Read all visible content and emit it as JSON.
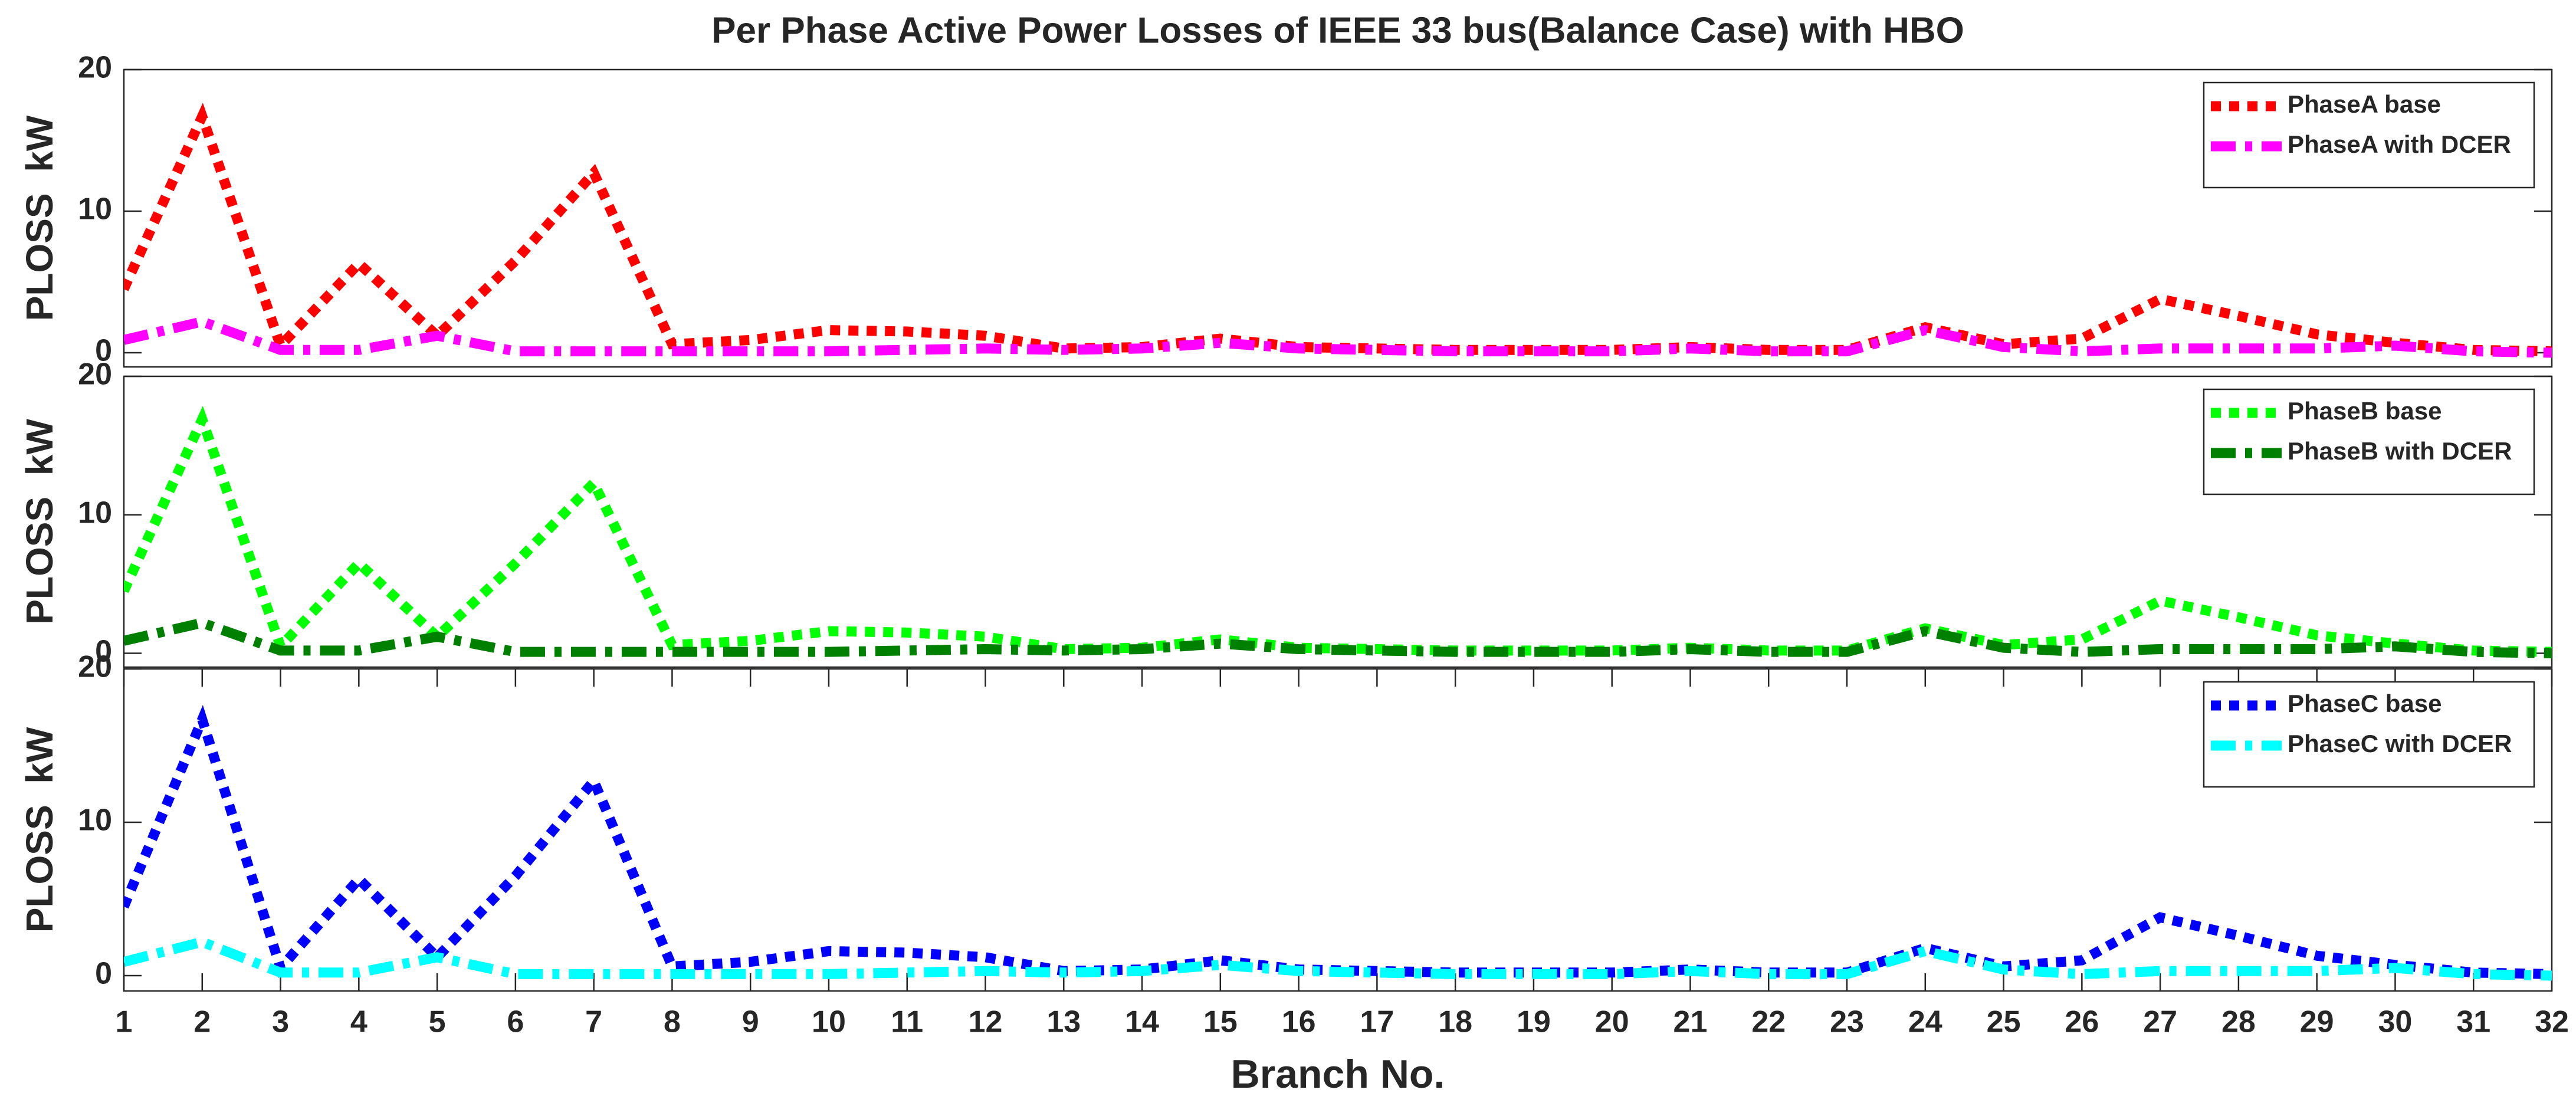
{
  "chart_data": [
    {
      "type": "line",
      "title": "Per Phase Active Power Losses of IEEE 33 bus(Balance Case) with HBO",
      "ylabel": "PLOSS  kW",
      "x": [
        1,
        2,
        3,
        4,
        5,
        6,
        7,
        8,
        9,
        10,
        11,
        12,
        13,
        14,
        15,
        16,
        17,
        18,
        19,
        20,
        21,
        22,
        23,
        24,
        25,
        26,
        27,
        28,
        29,
        30,
        31,
        32
      ],
      "xlim": [
        1,
        32
      ],
      "ylim": [
        -1,
        20
      ],
      "yticks": [
        0,
        10,
        20
      ],
      "legend": "upper right",
      "series": [
        {
          "name": "PhaseA base",
          "color": "#ff0000",
          "linestyle": "dotted",
          "values": [
            4.5,
            16.7,
            0.5,
            6.3,
            1.2,
            6.5,
            12.7,
            0.6,
            0.9,
            1.6,
            1.5,
            1.2,
            0.3,
            0.4,
            1.0,
            0.4,
            0.3,
            0.2,
            0.2,
            0.2,
            0.4,
            0.2,
            0.2,
            1.8,
            0.6,
            1.0,
            3.8,
            2.6,
            1.3,
            0.7,
            0.2,
            0.1
          ]
        },
        {
          "name": "PhaseA with DCER",
          "color": "#ff00ff",
          "linestyle": "dashdot",
          "values": [
            0.9,
            2.2,
            0.2,
            0.2,
            1.2,
            0.1,
            0.1,
            0.1,
            0.1,
            0.1,
            0.2,
            0.3,
            0.2,
            0.3,
            0.7,
            0.3,
            0.2,
            0.1,
            0.1,
            0.1,
            0.3,
            0.1,
            0.1,
            1.6,
            0.4,
            0.1,
            0.3,
            0.3,
            0.3,
            0.5,
            0.1,
            0.0
          ]
        }
      ]
    },
    {
      "type": "line",
      "ylabel": "PLOSS  kW",
      "x": [
        1,
        2,
        3,
        4,
        5,
        6,
        7,
        8,
        9,
        10,
        11,
        12,
        13,
        14,
        15,
        16,
        17,
        18,
        19,
        20,
        21,
        22,
        23,
        24,
        25,
        26,
        27,
        28,
        29,
        30,
        31,
        32
      ],
      "xlim": [
        1,
        32
      ],
      "ylim": [
        -1,
        20
      ],
      "yticks": [
        0,
        10,
        20
      ],
      "legend": "upper right",
      "series": [
        {
          "name": "PhaseB base",
          "color": "#00ff00",
          "linestyle": "dotted",
          "values": [
            4.5,
            16.9,
            0.5,
            6.5,
            1.2,
            6.5,
            12.3,
            0.6,
            0.9,
            1.6,
            1.5,
            1.2,
            0.3,
            0.4,
            1.0,
            0.4,
            0.3,
            0.2,
            0.2,
            0.2,
            0.4,
            0.2,
            0.2,
            1.8,
            0.6,
            1.0,
            3.8,
            2.6,
            1.3,
            0.7,
            0.2,
            0.1
          ]
        },
        {
          "name": "PhaseB with DCER",
          "color": "#008000",
          "linestyle": "dashdot",
          "values": [
            0.9,
            2.2,
            0.2,
            0.2,
            1.2,
            0.1,
            0.1,
            0.1,
            0.1,
            0.1,
            0.2,
            0.3,
            0.2,
            0.3,
            0.7,
            0.3,
            0.2,
            0.1,
            0.1,
            0.1,
            0.3,
            0.1,
            0.1,
            1.6,
            0.4,
            0.1,
            0.3,
            0.3,
            0.3,
            0.5,
            0.1,
            0.0
          ]
        }
      ]
    },
    {
      "type": "line",
      "ylabel": "PLOSS  kW",
      "xlabel": "Branch No.",
      "x": [
        1,
        2,
        3,
        4,
        5,
        6,
        7,
        8,
        9,
        10,
        11,
        12,
        13,
        14,
        15,
        16,
        17,
        18,
        19,
        20,
        21,
        22,
        23,
        24,
        25,
        26,
        27,
        28,
        29,
        30,
        31,
        32
      ],
      "xlim": [
        1,
        32
      ],
      "xticks": [
        1,
        2,
        3,
        4,
        5,
        6,
        7,
        8,
        9,
        10,
        11,
        12,
        13,
        14,
        15,
        16,
        17,
        18,
        19,
        20,
        21,
        22,
        23,
        24,
        25,
        26,
        27,
        28,
        29,
        30,
        31,
        32
      ],
      "ylim": [
        -1,
        20
      ],
      "yticks": [
        0,
        10,
        20
      ],
      "legend": "upper right",
      "series": [
        {
          "name": "PhaseC base",
          "color": "#0000ff",
          "linestyle": "dotted",
          "values": [
            4.5,
            16.7,
            0.5,
            6.3,
            1.2,
            6.5,
            12.7,
            0.6,
            0.9,
            1.6,
            1.5,
            1.2,
            0.3,
            0.4,
            1.0,
            0.4,
            0.3,
            0.2,
            0.2,
            0.2,
            0.4,
            0.2,
            0.2,
            1.8,
            0.6,
            1.0,
            3.8,
            2.6,
            1.3,
            0.7,
            0.2,
            0.1
          ]
        },
        {
          "name": "PhaseC with DCER",
          "color": "#00ffff",
          "linestyle": "dashdot",
          "values": [
            0.9,
            2.2,
            0.2,
            0.2,
            1.2,
            0.1,
            0.1,
            0.1,
            0.1,
            0.1,
            0.2,
            0.3,
            0.2,
            0.3,
            0.7,
            0.3,
            0.2,
            0.1,
            0.1,
            0.1,
            0.3,
            0.1,
            0.1,
            1.6,
            0.4,
            0.1,
            0.3,
            0.3,
            0.3,
            0.5,
            0.1,
            0.0
          ]
        }
      ]
    }
  ]
}
